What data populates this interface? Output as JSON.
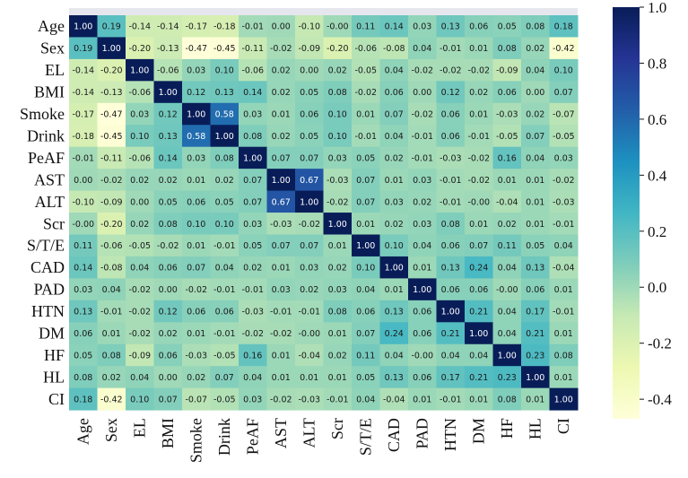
{
  "chart_data": {
    "type": "heatmap",
    "title": "",
    "xlabel": "",
    "ylabel": "",
    "labels": [
      "Age",
      "Sex",
      "EL",
      "BMI",
      "Smoke",
      "Drink",
      "PeAF",
      "AST",
      "ALT",
      "Scr",
      "S/T/E",
      "CAD",
      "PAD",
      "HTN",
      "DM",
      "HF",
      "HL",
      "CI"
    ],
    "matrix": [
      [
        1.0,
        0.19,
        -0.14,
        -0.14,
        -0.17,
        -0.18,
        -0.01,
        0.0,
        -0.1,
        -0.0,
        0.11,
        0.14,
        0.03,
        0.13,
        0.06,
        0.05,
        0.08,
        0.18
      ],
      [
        0.19,
        1.0,
        -0.2,
        -0.13,
        -0.47,
        -0.45,
        -0.11,
        -0.02,
        -0.09,
        -0.2,
        -0.06,
        -0.08,
        0.04,
        -0.01,
        0.01,
        0.08,
        0.02,
        -0.42
      ],
      [
        -0.14,
        -0.2,
        1.0,
        -0.06,
        0.03,
        0.1,
        -0.06,
        0.02,
        0.0,
        0.02,
        -0.05,
        0.04,
        -0.02,
        -0.02,
        -0.02,
        -0.09,
        0.04,
        0.1
      ],
      [
        -0.14,
        -0.13,
        -0.06,
        1.0,
        0.12,
        0.13,
        0.14,
        0.02,
        0.05,
        0.08,
        -0.02,
        0.06,
        0.0,
        0.12,
        0.02,
        0.06,
        0.0,
        0.07
      ],
      [
        -0.17,
        -0.47,
        0.03,
        0.12,
        1.0,
        0.58,
        0.03,
        0.01,
        0.06,
        0.1,
        0.01,
        0.07,
        -0.02,
        0.06,
        0.01,
        -0.03,
        0.02,
        -0.07
      ],
      [
        -0.18,
        -0.45,
        0.1,
        0.13,
        0.58,
        1.0,
        0.08,
        0.02,
        0.05,
        0.1,
        -0.01,
        0.04,
        -0.01,
        0.06,
        -0.01,
        -0.05,
        0.07,
        -0.05
      ],
      [
        -0.01,
        -0.11,
        -0.06,
        0.14,
        0.03,
        0.08,
        1.0,
        0.07,
        0.07,
        0.03,
        0.05,
        0.02,
        -0.01,
        -0.03,
        -0.02,
        0.16,
        0.04,
        0.03
      ],
      [
        0.0,
        -0.02,
        0.02,
        0.02,
        0.01,
        0.02,
        0.07,
        1.0,
        0.67,
        -0.03,
        0.07,
        0.01,
        0.03,
        -0.01,
        -0.02,
        0.01,
        0.01,
        -0.02
      ],
      [
        -0.1,
        -0.09,
        0.0,
        0.05,
        0.06,
        0.05,
        0.07,
        0.67,
        1.0,
        -0.02,
        0.07,
        0.03,
        0.02,
        -0.01,
        -0.0,
        -0.04,
        0.01,
        -0.03
      ],
      [
        -0.0,
        -0.2,
        0.02,
        0.08,
        0.1,
        0.1,
        0.03,
        -0.03,
        -0.02,
        1.0,
        0.01,
        0.02,
        0.03,
        0.08,
        0.01,
        0.02,
        0.01,
        -0.01
      ],
      [
        0.11,
        -0.06,
        -0.05,
        -0.02,
        0.01,
        -0.01,
        0.05,
        0.07,
        0.07,
        0.01,
        1.0,
        0.1,
        0.04,
        0.06,
        0.07,
        0.11,
        0.05,
        0.04
      ],
      [
        0.14,
        -0.08,
        0.04,
        0.06,
        0.07,
        0.04,
        0.02,
        0.01,
        0.03,
        0.02,
        0.1,
        1.0,
        0.01,
        0.13,
        0.24,
        0.04,
        0.13,
        -0.04
      ],
      [
        0.03,
        0.04,
        -0.02,
        0.0,
        -0.02,
        -0.01,
        -0.01,
        0.03,
        0.02,
        0.03,
        0.04,
        0.01,
        1.0,
        0.06,
        0.06,
        -0.0,
        0.06,
        0.01
      ],
      [
        0.13,
        -0.01,
        -0.02,
        0.12,
        0.06,
        0.06,
        -0.03,
        -0.01,
        -0.01,
        0.08,
        0.06,
        0.13,
        0.06,
        1.0,
        0.21,
        0.04,
        0.17,
        -0.01
      ],
      [
        0.06,
        0.01,
        -0.02,
        0.02,
        0.01,
        -0.01,
        -0.02,
        -0.02,
        -0.0,
        0.01,
        0.07,
        0.24,
        0.06,
        0.21,
        1.0,
        0.04,
        0.21,
        0.01
      ],
      [
        0.05,
        0.08,
        -0.09,
        0.06,
        -0.03,
        -0.05,
        0.16,
        0.01,
        -0.04,
        0.02,
        0.11,
        0.04,
        -0.0,
        0.04,
        0.04,
        1.0,
        0.23,
        0.08
      ],
      [
        0.08,
        0.02,
        0.04,
        0.0,
        0.02,
        0.07,
        0.04,
        0.01,
        0.01,
        0.01,
        0.05,
        0.13,
        0.06,
        0.17,
        0.21,
        0.23,
        1.0,
        0.01
      ],
      [
        0.18,
        -0.42,
        0.1,
        0.07,
        -0.07,
        -0.05,
        0.03,
        -0.02,
        -0.03,
        -0.01,
        0.04,
        -0.04,
        0.01,
        -0.01,
        0.01,
        0.08,
        0.01,
        1.0
      ]
    ],
    "color_range": [
      -0.47,
      1.0
    ],
    "colormap": "YlGnBu",
    "colorbar_ticks": [
      "1.0",
      "0.8",
      "0.6",
      "0.4",
      "0.2",
      "0.0",
      "-0.2",
      "-0.4"
    ],
    "colorbar_tick_values": [
      1.0,
      0.8,
      0.6,
      0.4,
      0.2,
      0.0,
      -0.2,
      -0.4
    ],
    "colormap_stops": [
      "#ffffd9",
      "#edf8b1",
      "#c7e9b4",
      "#7fcdbb",
      "#41b6c4",
      "#1d91c0",
      "#225ea8",
      "#253494",
      "#081d58"
    ],
    "grid": false,
    "legend": "colorbar-right"
  }
}
